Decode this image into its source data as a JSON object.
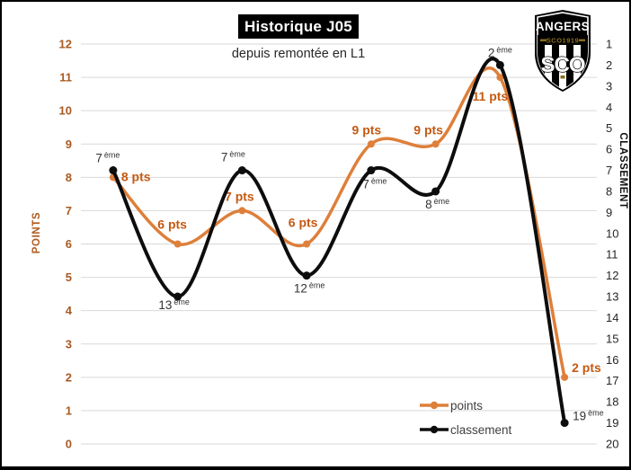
{
  "colors": {
    "points_line": "#DE7F3A",
    "points_labels": "#C45911",
    "classement_line": "#0D0D0D",
    "classement_labels": "#333333",
    "grid": "#D9D9D9",
    "left_ticks": "#A85A22",
    "right_ticks": "#262626",
    "title_bg": "#000000",
    "title_fg": "#FFFFFF",
    "logo_gold": "#8A6D1F"
  },
  "logo": {
    "club_name": "ANGERS",
    "banner_text": "SCO1919",
    "monogram": "SCO"
  },
  "chart_data": {
    "type": "line",
    "smoothed": true,
    "title": "Historique J05",
    "subtitle": "depuis remontée en L1",
    "grid": "horizontal",
    "x_axis_labels": [],
    "left_axis": {
      "title": "POINTS",
      "min": 0,
      "max": 12,
      "ticks": [
        12,
        11,
        10,
        9,
        8,
        7,
        6,
        5,
        4,
        3,
        2,
        1,
        0
      ]
    },
    "right_axis": {
      "title": "CLASSEMENT",
      "min": 1,
      "max": 20,
      "ticks": [
        1,
        2,
        3,
        4,
        5,
        6,
        7,
        8,
        9,
        10,
        11,
        12,
        13,
        14,
        15,
        16,
        17,
        18,
        19,
        20
      ],
      "note": "1 at top, 20 at bottom"
    },
    "legend": [
      {
        "id": "points",
        "label": "points"
      },
      {
        "id": "classement",
        "label": "classement"
      }
    ],
    "legend_position": "inside-bottom-right",
    "series": [
      {
        "name": "points",
        "axis": "left",
        "color": "#DE7F3A",
        "label_color": "#C45911",
        "marker": "circle",
        "values": [
          8,
          6,
          7,
          6,
          9,
          9,
          11,
          2
        ],
        "labels": [
          "8 pts",
          "6 pts",
          "7 pts",
          "6 pts",
          "9 pts",
          "9 pts",
          "11 pts",
          "2 pts"
        ],
        "label_offsets": [
          [
            9,
            4,
            "start"
          ],
          [
            -6,
            -17,
            "middle"
          ],
          [
            -3,
            -11,
            "middle"
          ],
          [
            -4,
            -19,
            "middle"
          ],
          [
            -5,
            -11,
            "middle"
          ],
          [
            -8,
            -11,
            "middle"
          ],
          [
            -11,
            26,
            "middle"
          ],
          [
            8,
            -6,
            "start"
          ]
        ]
      },
      {
        "name": "classement",
        "axis": "right",
        "color": "#0D0D0D",
        "label_color": "#333333",
        "marker": "circle",
        "values": [
          7,
          13,
          7,
          12,
          7,
          8,
          2,
          19
        ],
        "labels": [
          "7",
          "13",
          "7",
          "12",
          "7",
          "8",
          "2",
          "19"
        ],
        "label_suffix": "ème",
        "label_offsets": [
          [
            -6,
            -9,
            "middle"
          ],
          [
            -4,
            14,
            "middle"
          ],
          [
            -10,
            -10,
            "middle"
          ],
          [
            3,
            19,
            "middle"
          ],
          [
            4,
            20,
            "middle"
          ],
          [
            2,
            19,
            "middle"
          ],
          [
            0,
            -9,
            "middle"
          ],
          [
            9,
            -3,
            "start"
          ]
        ]
      }
    ]
  }
}
